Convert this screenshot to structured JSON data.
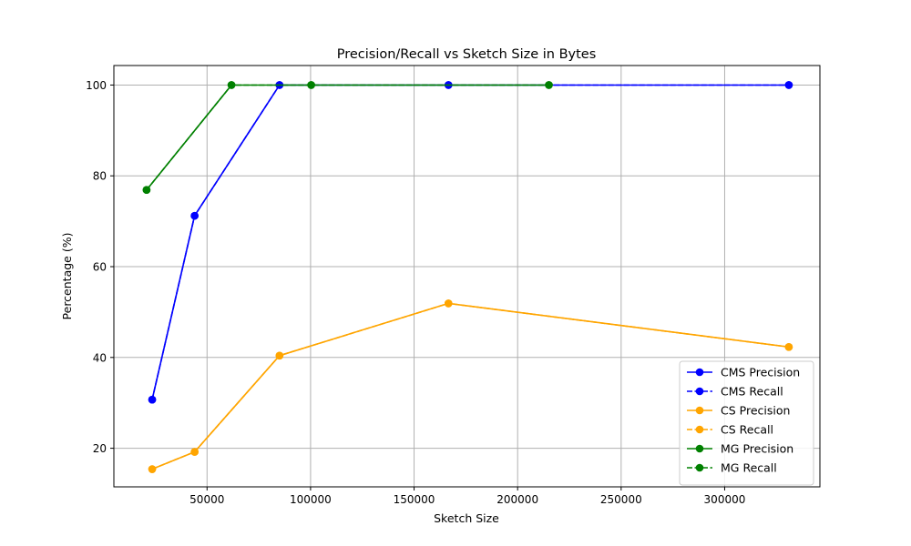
{
  "chart_data": {
    "type": "line",
    "title": "Precision/Recall vs Sketch Size in Bytes",
    "xlabel": "Sketch Size",
    "ylabel": "Percentage (%)",
    "xlim": [
      5000,
      346000
    ],
    "ylim": [
      11.5,
      104.3
    ],
    "xticks": [
      50000,
      100000,
      150000,
      200000,
      250000,
      300000
    ],
    "xtick_labels": [
      "50000",
      "100000",
      "150000",
      "200000",
      "250000",
      "300000"
    ],
    "yticks": [
      20,
      40,
      60,
      80,
      100
    ],
    "ytick_labels": [
      "20",
      "40",
      "60",
      "80",
      "100"
    ],
    "grid": true,
    "legend_position": "lower-right",
    "series": [
      {
        "name": "CMS Precision",
        "color": "#0000ff",
        "linestyle": "solid",
        "marker": "circle",
        "x": [
          23500,
          44000,
          85000,
          166600,
          331000
        ],
        "y": [
          30.7,
          71.2,
          100,
          100,
          100
        ]
      },
      {
        "name": "CMS Recall",
        "color": "#0000ff",
        "linestyle": "dashed",
        "marker": "circle",
        "x": [
          23500,
          44000,
          85000,
          166600,
          331000
        ],
        "y": [
          30.7,
          71.2,
          100,
          100,
          100
        ]
      },
      {
        "name": "CS Precision",
        "color": "#ffa500",
        "linestyle": "solid",
        "marker": "circle",
        "x": [
          23500,
          44000,
          85000,
          166600,
          331000
        ],
        "y": [
          15.4,
          19.2,
          40.4,
          51.9,
          42.3
        ]
      },
      {
        "name": "CS Recall",
        "color": "#ffa500",
        "linestyle": "dashed",
        "marker": "circle",
        "x": [
          23500,
          44000,
          85000,
          166600,
          331000
        ],
        "y": [
          15.4,
          19.2,
          40.4,
          51.9,
          42.3
        ]
      },
      {
        "name": "MG Precision",
        "color": "#008000",
        "linestyle": "solid",
        "marker": "circle",
        "x": [
          20800,
          61800,
          100300,
          215100
        ],
        "y": [
          76.9,
          100,
          100,
          100
        ]
      },
      {
        "name": "MG Recall",
        "color": "#008000",
        "linestyle": "dashed",
        "marker": "circle",
        "x": [
          20800,
          61800,
          100300,
          215100
        ],
        "y": [
          76.9,
          100,
          100,
          100
        ]
      }
    ]
  }
}
